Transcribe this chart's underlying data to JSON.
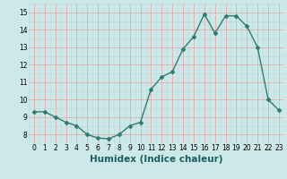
{
  "x": [
    0,
    1,
    2,
    3,
    4,
    5,
    6,
    7,
    8,
    9,
    10,
    11,
    12,
    13,
    14,
    15,
    16,
    17,
    18,
    19,
    20,
    21,
    22,
    23
  ],
  "y": [
    9.3,
    9.3,
    9.0,
    8.7,
    8.5,
    8.0,
    7.8,
    7.75,
    8.0,
    8.5,
    8.7,
    10.6,
    11.3,
    11.6,
    12.9,
    13.6,
    14.9,
    13.8,
    14.8,
    14.8,
    14.2,
    13.0,
    10.0,
    9.4
  ],
  "line_color": "#2e7d6e",
  "marker": "D",
  "markersize": 2.5,
  "linewidth": 1.0,
  "xlabel": "Humidex (Indice chaleur)",
  "xlim": [
    -0.5,
    23.5
  ],
  "ylim": [
    7.5,
    15.5
  ],
  "yticks": [
    8,
    9,
    10,
    11,
    12,
    13,
    14,
    15
  ],
  "xticks": [
    0,
    1,
    2,
    3,
    4,
    5,
    6,
    7,
    8,
    9,
    10,
    11,
    12,
    13,
    14,
    15,
    16,
    17,
    18,
    19,
    20,
    21,
    22,
    23
  ],
  "bg_color": "#cde8e8",
  "minor_grid_color": "#b8d8d8",
  "major_grid_color": "#e8a0a0",
  "tick_label_fontsize": 5.5,
  "xlabel_fontsize": 7.5
}
